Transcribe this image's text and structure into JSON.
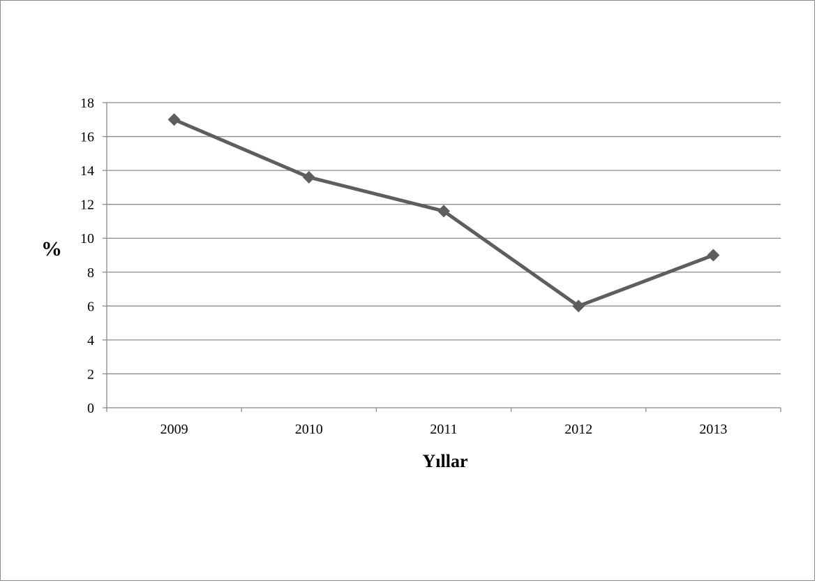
{
  "chart_data": {
    "type": "line",
    "title": "",
    "xlabel": "Yıllar",
    "ylabel": "%",
    "categories": [
      "2009",
      "2010",
      "2011",
      "2012",
      "2013"
    ],
    "series": [
      {
        "values": [
          17,
          13.6,
          11.6,
          6,
          9
        ],
        "color": "#5e5e5e",
        "marker": "diamond"
      }
    ],
    "ylim": [
      0,
      18
    ],
    "yticks": [
      0,
      2,
      4,
      6,
      8,
      10,
      12,
      14,
      16,
      18
    ],
    "grid": true,
    "legend": "none",
    "colors": {
      "line": "#5e5e5e",
      "grid": "#8a8a8a",
      "axis": "#8a8a8a"
    }
  }
}
